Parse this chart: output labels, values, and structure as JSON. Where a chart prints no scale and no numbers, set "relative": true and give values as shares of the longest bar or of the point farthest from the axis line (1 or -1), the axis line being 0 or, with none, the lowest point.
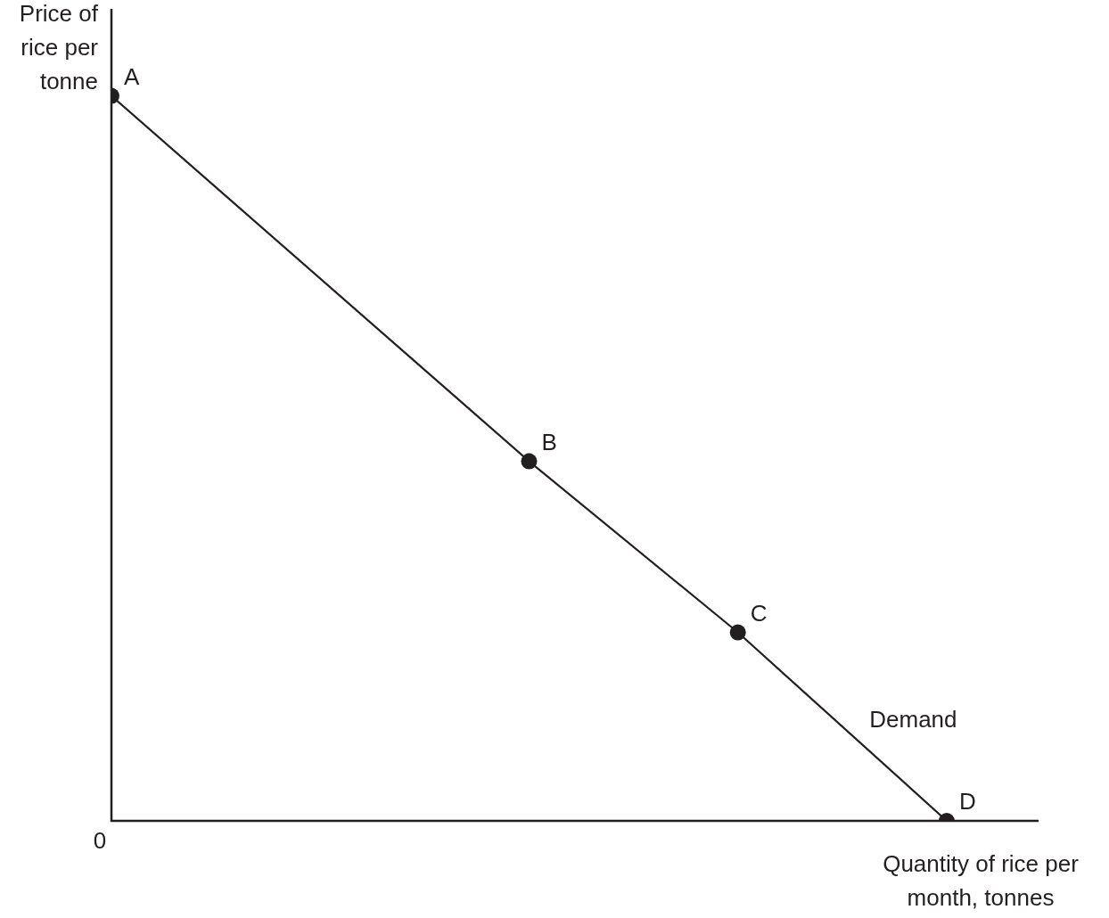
{
  "chart_data": {
    "type": "line",
    "relative": true,
    "xlabel": "Quantity of rice per month, tonnes",
    "ylabel": "Price of rice per tonne",
    "categories": [
      null,
      null,
      null,
      null,
      null
    ],
    "series": [
      {
        "color": "#231f20",
        "values": [
          1,
          null,
          0.496,
          0.26,
          0
        ]
      }
    ],
    "marker": "circle",
    "annotations": [
      "A",
      "B",
      "C",
      "D",
      "Demand",
      "0"
    ]
  }
}
